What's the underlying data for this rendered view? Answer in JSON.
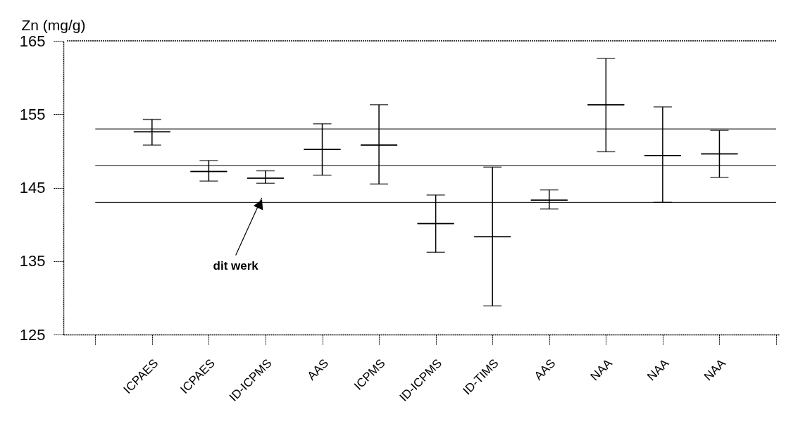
{
  "chart_data": {
    "type": "box",
    "ylabel": "Zn (mg/g)",
    "categories": [
      null,
      "ICPAES",
      "ICPAES",
      "ID-ICPMS",
      "AAS",
      "ICPMS",
      "ID-ICPMS",
      "ID-TIMS",
      "AAS",
      "NAA",
      "NAA",
      "NAA",
      null
    ],
    "boxes": [
      null,
      {
        "low": 150.8,
        "q1": 152.6,
        "median": 152.6,
        "q3": 152.6,
        "high": 154.3
      },
      {
        "low": 145.9,
        "q1": 147.2,
        "median": 147.2,
        "q3": 147.2,
        "high": 148.7
      },
      {
        "low": 145.6,
        "q1": 146.3,
        "median": 146.3,
        "q3": 146.3,
        "high": 147.3
      },
      {
        "low": 146.7,
        "q1": 150.2,
        "median": 150.2,
        "q3": 150.2,
        "high": 153.7
      },
      {
        "low": 145.5,
        "q1": 150.8,
        "median": 150.8,
        "q3": 150.8,
        "high": 156.3
      },
      {
        "low": 136.2,
        "q1": 140.1,
        "median": 140.1,
        "q3": 140.1,
        "high": 144.0
      },
      {
        "low": 128.9,
        "q1": 138.3,
        "median": 138.3,
        "q3": 138.3,
        "high": 147.8
      },
      {
        "low": 142.1,
        "q1": 143.3,
        "median": 143.3,
        "q3": 143.3,
        "high": 144.7
      },
      {
        "low": 149.9,
        "q1": 156.3,
        "median": 156.3,
        "q3": 156.3,
        "high": 162.6
      },
      {
        "low": 143.0,
        "q1": 149.4,
        "median": 149.4,
        "q3": 149.4,
        "high": 156.0
      },
      {
        "low": 146.4,
        "q1": 149.6,
        "median": 149.6,
        "q3": 149.6,
        "high": 152.8
      },
      null
    ],
    "color": "#000000",
    "ylim": [
      125,
      165
    ],
    "yticks": [
      125,
      135,
      145,
      155,
      165
    ],
    "grid": false,
    "ref_lines": [
      {
        "axis": "y",
        "value": 143
      },
      {
        "axis": "y",
        "value": 148
      },
      {
        "axis": "y",
        "value": 153
      }
    ],
    "annotations": [
      "dit werk"
    ]
  }
}
